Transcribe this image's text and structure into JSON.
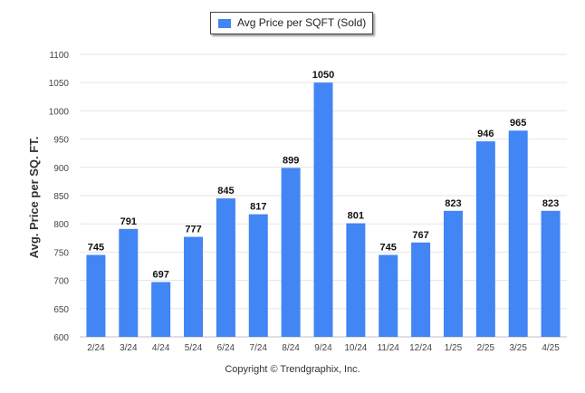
{
  "chart_data": {
    "type": "bar",
    "categories": [
      "2/24",
      "3/24",
      "4/24",
      "5/24",
      "6/24",
      "7/24",
      "8/24",
      "9/24",
      "10/24",
      "11/24",
      "12/24",
      "1/25",
      "2/25",
      "3/25",
      "4/25"
    ],
    "series": [
      {
        "name": "Avg Price per SQFT (Sold)",
        "values": [
          745,
          791,
          697,
          777,
          845,
          817,
          899,
          1050,
          801,
          745,
          767,
          823,
          946,
          965,
          823
        ]
      }
    ],
    "ylabel": "Avg. Price per SQ. FT.",
    "xlabel": "",
    "ylim": [
      600,
      1100
    ],
    "yticks": [
      600,
      650,
      700,
      750,
      800,
      850,
      900,
      950,
      1000,
      1050,
      1100
    ],
    "grid": true,
    "legend_position": "top-center",
    "bar_color": "#4285f4"
  },
  "footer": {
    "copyright": "Copyright © Trendgraphix, Inc."
  }
}
